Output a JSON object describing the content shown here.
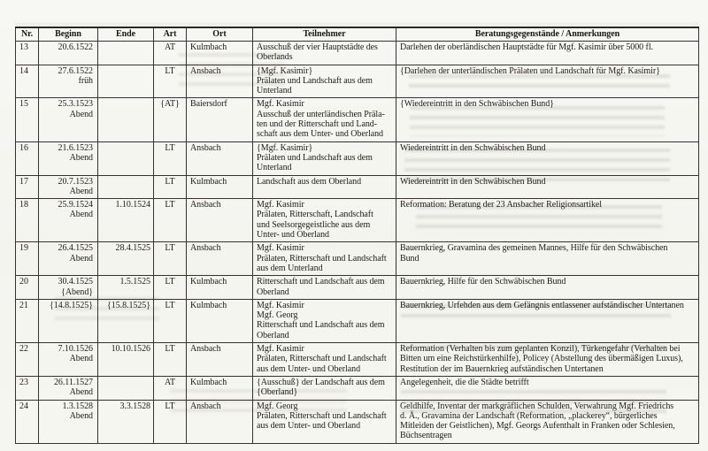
{
  "table": {
    "columns": [
      {
        "key": "nr",
        "label": "Nr."
      },
      {
        "key": "beginn",
        "label": "Beginn"
      },
      {
        "key": "ende",
        "label": "Ende"
      },
      {
        "key": "art",
        "label": "Art"
      },
      {
        "key": "ort",
        "label": "Ort"
      },
      {
        "key": "teilnehmer",
        "label": "Teilnehmer"
      },
      {
        "key": "beratung",
        "label": "Beratungsgegenstände / Anmerkungen"
      }
    ],
    "rows": [
      {
        "nr": "13",
        "beginn": "20.6.1522",
        "ende": "",
        "art": "AT",
        "ort": "Kulmbach",
        "teilnehmer": "Ausschuß der vier Hauptstädte des\nOberlands",
        "beratung": "Darlehen der oberländischen Hauptstädte für Mgf. Kasimir über 5000 fl."
      },
      {
        "nr": "14",
        "beginn": "27.6.1522\nfrüh",
        "ende": "",
        "art": "LT",
        "ort": "Ansbach",
        "teilnehmer": "{Mgf. Kasimir}\nPrälaten und Landschaft aus dem\nUnterland",
        "beratung": "{Darlehen der unterländischen Prälaten und Landschaft für Mgf. Kasimir}"
      },
      {
        "nr": "15",
        "beginn": "25.3.1523\nAbend",
        "ende": "",
        "art": "{AT}",
        "ort": "Baiersdorf",
        "teilnehmer": "Mgf. Kasimir\nAusschuß der unterländischen Präla-\nten und der Ritterschaft und Land-\nschaft aus dem Unter- und Oberland",
        "beratung": "{Wiedereintritt in den Schwäbischen Bund}"
      },
      {
        "nr": "16",
        "beginn": "21.6.1523\nAbend",
        "ende": "",
        "art": "LT",
        "ort": "Ansbach",
        "teilnehmer": "{Mgf. Kasimir}\nPrälaten und Landschaft aus dem\nUnterland",
        "beratung": "Wiedereintritt in den Schwäbischen Bund"
      },
      {
        "nr": "17",
        "beginn": "20.7.1523\nAbend",
        "ende": "",
        "art": "LT",
        "ort": "Kulmbach",
        "teilnehmer": "Landschaft aus dem Oberland",
        "beratung": "Wiedereintritt in den Schwäbischen Bund"
      },
      {
        "nr": "18",
        "beginn": "25.9.1524\nAbend",
        "ende": "1.10.1524",
        "art": "LT",
        "ort": "Ansbach",
        "teilnehmer": "Mgf. Kasimir\nPrälaten, Ritterschaft, Landschaft\nund Seelsorgegeistliche aus dem\nUnter- und Oberland",
        "beratung": "Reformation: Beratung der 23 Ansbacher Religionsartikel"
      },
      {
        "nr": "19",
        "beginn": "26.4.1525\nAbend",
        "ende": "28.4.1525",
        "art": "LT",
        "ort": "Ansbach",
        "teilnehmer": "Mgf. Kasimir\nPrälaten, Ritterschaft und Landschaft\naus dem Unterland",
        "beratung": "Bauernkrieg, Gravamina des gemeinen Mannes, Hilfe für den Schwäbischen\nBund"
      },
      {
        "nr": "20",
        "beginn": "30.4.1525\n{Abend}",
        "ende": "1.5.1525",
        "art": "LT",
        "ort": "Kulmbach",
        "teilnehmer": "Ritterschaft und Landschaft aus dem\nOberland",
        "beratung": "Bauernkrieg, Hilfe für den Schwäbischen Bund"
      },
      {
        "nr": "21",
        "beginn": "{14.8.1525}",
        "ende": "{15.8.1525}",
        "art": "LT",
        "ort": "Kulmbach",
        "teilnehmer": "Mgf. Kasimir\nMgf. Georg\nRitterschaft und Landschaft aus dem\nOberland",
        "beratung": "Bauernkrieg, Urfehden aus dem Gefängnis entlassener aufständischer Untertanen"
      },
      {
        "nr": "22",
        "beginn": "7.10.1526\nAbend",
        "ende": "10.10.1526",
        "art": "LT",
        "ort": "Ansbach",
        "teilnehmer": "Mgf. Kasimir\nPrälaten, Ritterschaft und Landschaft\naus dem Unter- und Oberland",
        "beratung": "Reformation (Verhalten bis zum geplanten Konzil), Türkengefahr (Verhalten bei\nBitten um eine Reichstürkenhilfe), Policey (Abstellung des übermäßigen Luxus),\nRestitution der im Bauernkrieg aufständischen Untertanen"
      },
      {
        "nr": "23",
        "beginn": "26.11.1527\nAbend",
        "ende": "",
        "art": "AT",
        "ort": "Kulmbach",
        "teilnehmer": "{Ausschuß} der Landschaft aus dem\n{Oberland}",
        "beratung": "Angelegenheit, die die Städte betrifft"
      },
      {
        "nr": "24",
        "beginn": "1.3.1528\nAbend",
        "ende": "3.3.1528",
        "art": "LT",
        "ort": "Ansbach",
        "teilnehmer": "Mgf. Georg\nPrälaten, Ritterschaft und Landschaft\naus dem Unter- und Oberland",
        "beratung": "Geldhilfe, Inventar der markgräflichen Schulden, Verwahrung Mgf. Friedrichs\nd. Ä., Gravamina der Landschaft (Reformation, „plackerey“, bürgerliches\nMitleiden der Geistlichen), Mgf. Georgs Aufenthalt in Franken oder Schlesien,\nBüchsentragen"
      }
    ]
  }
}
